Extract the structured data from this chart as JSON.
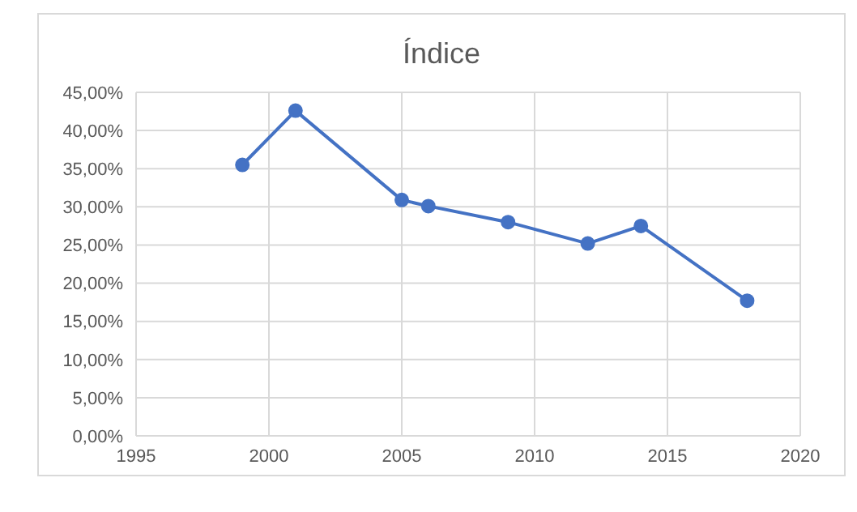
{
  "chart_data": {
    "type": "line",
    "title": "Índice",
    "x": [
      1999,
      2001,
      2005,
      2006,
      2009,
      2012,
      2014,
      2018
    ],
    "series": [
      {
        "color": "#4472c4",
        "values": [
          35.5,
          42.6,
          30.9,
          30.1,
          28.0,
          25.2,
          27.5,
          17.7
        ]
      }
    ],
    "xlim": [
      1995,
      2020
    ],
    "xticks": [
      1995,
      2000,
      2005,
      2010,
      2015,
      2020
    ],
    "ylim": [
      0,
      45
    ],
    "yticks": [
      {
        "value": 0,
        "label": "0,00%"
      },
      {
        "value": 5,
        "label": "5,00%"
      },
      {
        "value": 10,
        "label": "10,00%"
      },
      {
        "value": 15,
        "label": "15,00%"
      },
      {
        "value": 20,
        "label": "20,00%"
      },
      {
        "value": 25,
        "label": "25,00%"
      },
      {
        "value": 30,
        "label": "30,00%"
      },
      {
        "value": 35,
        "label": "35,00%"
      },
      {
        "value": 40,
        "label": "40,00%"
      },
      {
        "value": 45,
        "label": "45,00%"
      }
    ],
    "grid": true,
    "marker": "circle",
    "line_style": "solid",
    "legend": false
  }
}
